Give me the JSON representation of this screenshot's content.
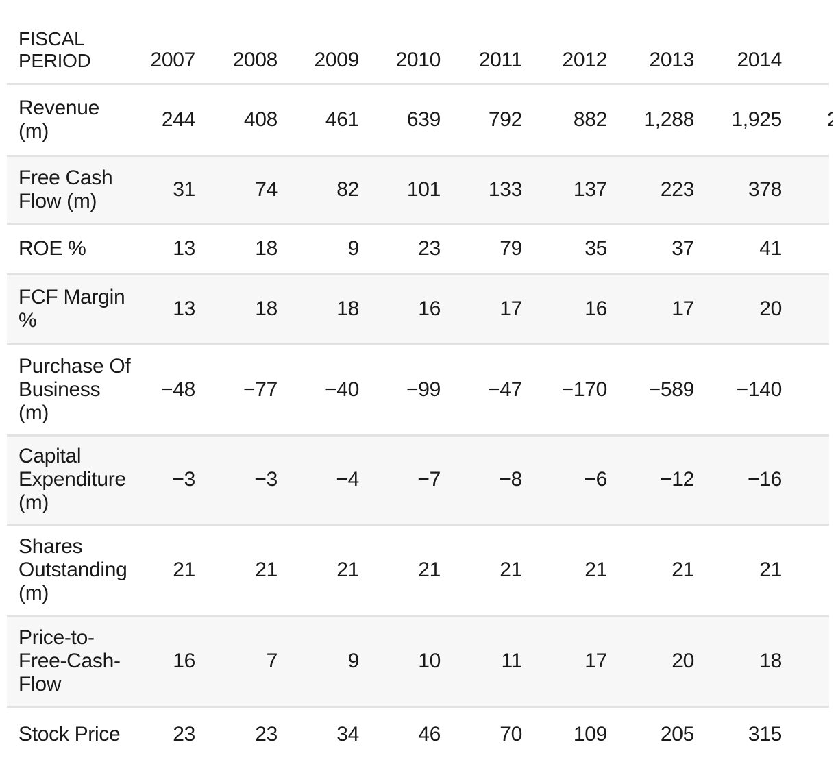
{
  "chart_data": {
    "type": "table",
    "header_label": "FISCAL\nPERIOD",
    "categories": [
      "2007",
      "2008",
      "2009",
      "2010",
      "2011",
      "2012",
      "2013",
      "2014"
    ],
    "clipped_last_column": true,
    "series": [
      {
        "label": "Revenue\n(m)",
        "values": [
          "244",
          "408",
          "461",
          "639",
          "792",
          "882",
          "1,288",
          "1,925"
        ],
        "partial_next_value": "2"
      },
      {
        "label": "Free Cash\nFlow (m)",
        "values": [
          "31",
          "74",
          "82",
          "101",
          "133",
          "137",
          "223",
          "378"
        ]
      },
      {
        "label": "ROE %",
        "values": [
          "13",
          "18",
          "9",
          "23",
          "79",
          "35",
          "37",
          "41"
        ]
      },
      {
        "label": "FCF Margin\n%",
        "values": [
          "13",
          "18",
          "18",
          "16",
          "17",
          "16",
          "17",
          "20"
        ]
      },
      {
        "label": "Purchase Of\nBusiness\n(m)",
        "values": [
          "−48",
          "−77",
          "−40",
          "−99",
          "−47",
          "−170",
          "−589",
          "−140"
        ]
      },
      {
        "label": "Capital\nExpenditure\n(m)",
        "values": [
          "−3",
          "−3",
          "−4",
          "−7",
          "−8",
          "−6",
          "−12",
          "−16"
        ]
      },
      {
        "label": "Shares\nOutstanding\n(m)",
        "values": [
          "21",
          "21",
          "21",
          "21",
          "21",
          "21",
          "21",
          "21"
        ]
      },
      {
        "label": "Price-to-\nFree-Cash-\nFlow",
        "values": [
          "16",
          "7",
          "9",
          "10",
          "11",
          "17",
          "20",
          "18"
        ]
      },
      {
        "label": "Stock Price",
        "values": [
          "23",
          "23",
          "34",
          "46",
          "70",
          "109",
          "205",
          "315"
        ]
      }
    ],
    "layout_hints": {
      "value_alignment": "right",
      "striped_rows": "alternating",
      "grid": "horizontal dividers only"
    }
  },
  "colors": {
    "background": "#ffffff",
    "stripe": "#f7f7f7",
    "divider": "#e2e2e2",
    "text": "#1a1a1a"
  }
}
